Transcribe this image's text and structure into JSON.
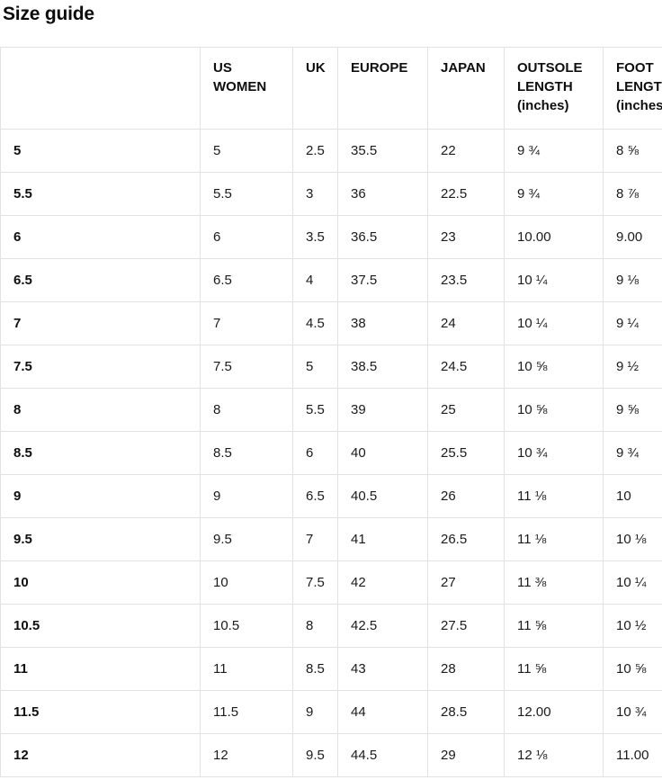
{
  "page": {
    "title": "Size guide"
  },
  "table": {
    "columns": [
      "",
      "US WOMEN",
      "UK",
      "EUROPE",
      "JAPAN",
      "OUTSOLE LENGTH (inches)",
      "FOOT LENGTH (inches)"
    ],
    "rows": [
      [
        "5",
        "5",
        "2.5",
        "35.5",
        "22",
        "9 ¾",
        "8 ⅝"
      ],
      [
        "5.5",
        "5.5",
        "3",
        "36",
        "22.5",
        "9 ¾",
        "8 ⅞"
      ],
      [
        "6",
        "6",
        "3.5",
        "36.5",
        "23",
        "10.00",
        "9.00"
      ],
      [
        "6.5",
        "6.5",
        "4",
        "37.5",
        "23.5",
        "10 ¼",
        "9 ⅛"
      ],
      [
        "7",
        "7",
        "4.5",
        "38",
        "24",
        "10 ¼",
        "9 ¼"
      ],
      [
        "7.5",
        "7.5",
        "5",
        "38.5",
        "24.5",
        "10 ⅝",
        "9 ½"
      ],
      [
        "8",
        "8",
        "5.5",
        "39",
        "25",
        "10 ⅝",
        "9 ⅝"
      ],
      [
        "8.5",
        "8.5",
        "6",
        "40",
        "25.5",
        "10 ¾",
        "9 ¾"
      ],
      [
        "9",
        "9",
        "6.5",
        "40.5",
        "26",
        "11 ⅛",
        "10"
      ],
      [
        "9.5",
        "9.5",
        "7",
        "41",
        "26.5",
        "11 ⅛",
        "10 ⅛"
      ],
      [
        "10",
        "10",
        "7.5",
        "42",
        "27",
        "11 ⅜",
        "10 ¼"
      ],
      [
        "10.5",
        "10.5",
        "8",
        "42.5",
        "27.5",
        "11 ⅝",
        "10 ½"
      ],
      [
        "11",
        "11",
        "8.5",
        "43",
        "28",
        "11 ⅝",
        "10 ⅝"
      ],
      [
        "11.5",
        "11.5",
        "9",
        "44",
        "28.5",
        "12.00",
        "10 ¾"
      ],
      [
        "12",
        "12",
        "9.5",
        "44.5",
        "29",
        "12 ⅛",
        "11.00"
      ]
    ]
  }
}
